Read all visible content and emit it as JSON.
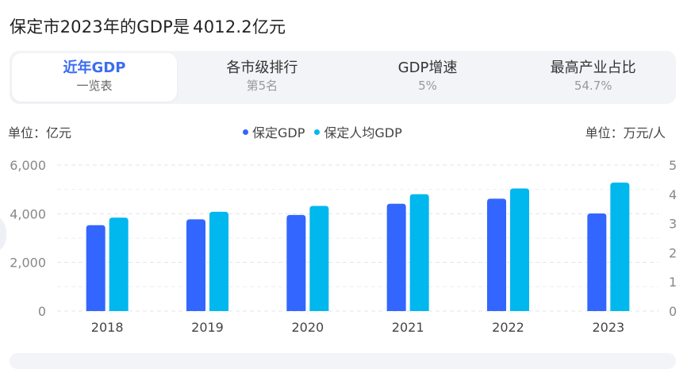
{
  "page": {
    "title_prefix": "保定市2023年的GDP是",
    "title_value": "4012.2亿元"
  },
  "tabs": [
    {
      "main": "近年GDP",
      "sub": "一览表",
      "active": true
    },
    {
      "main": "各市级排行",
      "sub": "第5名",
      "active": false
    },
    {
      "main": "GDP增速",
      "sub": "5%",
      "active": false
    },
    {
      "main": "最高产业占比",
      "sub": "54.7%",
      "active": false
    }
  ],
  "units": {
    "left": "单位：亿元",
    "right": "单位：万元/人"
  },
  "colors": {
    "gdp": "#3366ff",
    "per_capita": "#00b7ee",
    "accent": "#3b6df2"
  },
  "chart_data": {
    "type": "bar",
    "categories": [
      "2018",
      "2019",
      "2020",
      "2021",
      "2022",
      "2023"
    ],
    "series": [
      {
        "name": "保定GDP",
        "axis": "left",
        "values": [
          3530,
          3770,
          3950,
          4410,
          4620,
          4012.2
        ]
      },
      {
        "name": "保定人均GDP",
        "axis": "right",
        "values": [
          3.2,
          3.4,
          3.6,
          4.0,
          4.2,
          4.4
        ]
      }
    ],
    "y_left": {
      "min": 0,
      "max": 6000,
      "ticks": [
        "0",
        "2,000",
        "4,000",
        "6,000"
      ]
    },
    "y_right": {
      "min": 0,
      "max": 5,
      "ticks": [
        "0",
        "1",
        "2",
        "3",
        "4",
        "5"
      ]
    },
    "grid": "dashed",
    "legend_position": "top-center"
  }
}
